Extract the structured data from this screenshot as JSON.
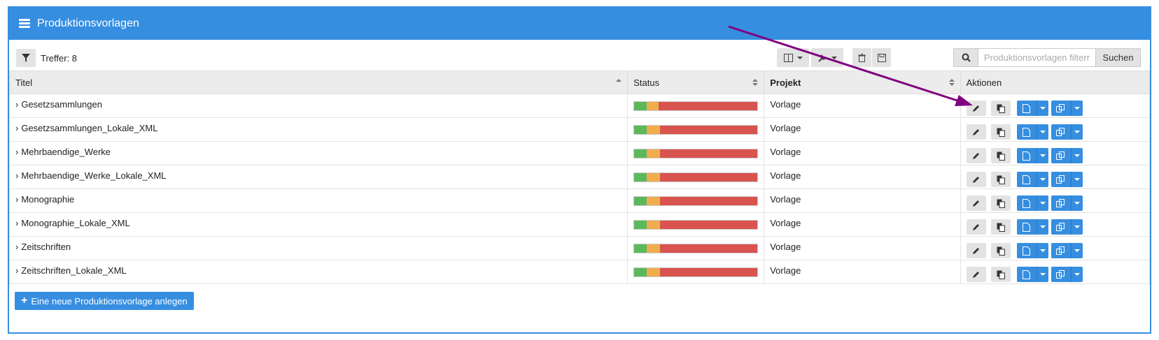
{
  "header": {
    "title": "Produktionsvorlagen",
    "icon": "list-icon"
  },
  "toolbar": {
    "hits_label": "Treffer: 8",
    "search_placeholder": "Produktionsvorlagen filtern",
    "search_button": "Suchen"
  },
  "table": {
    "columns": [
      "Titel",
      "Status",
      "Projekt",
      "Aktionen"
    ],
    "rows": [
      {
        "title": "Gesetzsammlungen",
        "project": "Vorlage"
      },
      {
        "title": "Gesetzsammlungen_Lokale_XML",
        "project": "Vorlage"
      },
      {
        "title": "Mehrbaendige_Werke",
        "project": "Vorlage"
      },
      {
        "title": "Mehrbaendige_Werke_Lokale_XML",
        "project": "Vorlage"
      },
      {
        "title": "Monographie",
        "project": "Vorlage"
      },
      {
        "title": "Monographie_Lokale_XML",
        "project": "Vorlage"
      },
      {
        "title": "Zeitschriften",
        "project": "Vorlage"
      },
      {
        "title": "Zeitschriften_Lokale_XML",
        "project": "Vorlage"
      }
    ]
  },
  "footer": {
    "new_button": "Eine neue Produktionsvorlage anlegen"
  },
  "colors": {
    "accent": "#368ee0",
    "status_done": "#5cb85c",
    "status_open": "#f0ad4e",
    "status_locked": "#d9534f",
    "annotation_arrow": "#800080"
  }
}
